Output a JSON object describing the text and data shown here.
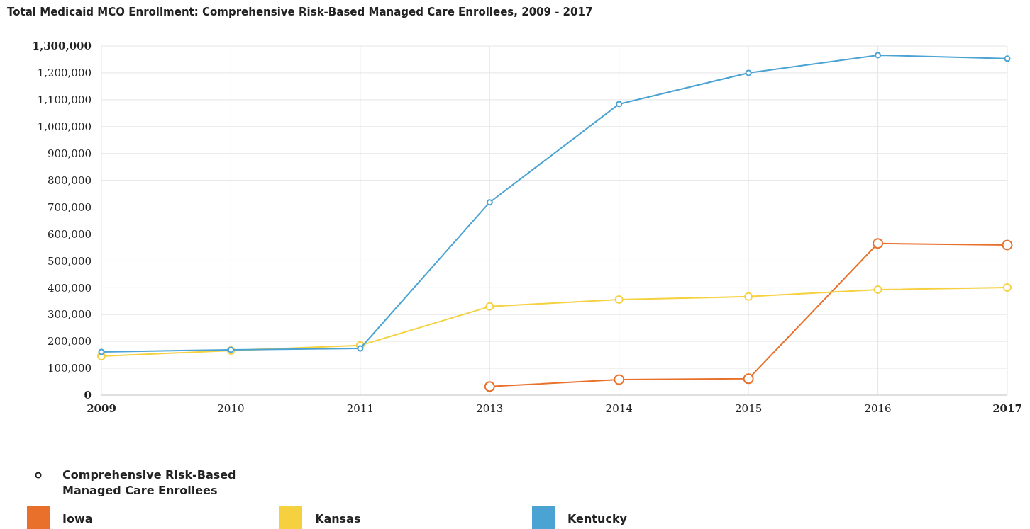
{
  "chart_data": {
    "type": "line",
    "title": "Total Medicaid MCO Enrollment: Comprehensive Risk-Based Managed Care Enrollees, 2009 - 2017",
    "categories": [
      "2009",
      "2010",
      "2011",
      "2013",
      "2014",
      "2015",
      "2016",
      "2017"
    ],
    "series": [
      {
        "name": "Iowa",
        "color": "#e8702a",
        "values": [
          null,
          null,
          null,
          32000,
          58000,
          61000,
          565000,
          559000
        ]
      },
      {
        "name": "Kansas",
        "color": "#f5d03f",
        "values": [
          145000,
          166000,
          185000,
          330000,
          356000,
          367000,
          393000,
          401000
        ]
      },
      {
        "name": "Kentucky",
        "color": "#4aa3d3",
        "values": [
          161000,
          169000,
          174000,
          718000,
          1084000,
          1200000,
          1266000,
          1253000
        ]
      }
    ],
    "legend_title": "Comprehensive Risk-Based Managed Care Enrollees",
    "ylim": [
      0,
      1300000
    ],
    "yticks": [
      {
        "value": 0,
        "label": "0"
      },
      {
        "value": 100000,
        "label": "100,000"
      },
      {
        "value": 200000,
        "label": "200,000"
      },
      {
        "value": 300000,
        "label": "300,000"
      },
      {
        "value": 400000,
        "label": "400,000"
      },
      {
        "value": 500000,
        "label": "500,000"
      },
      {
        "value": 600000,
        "label": "600,000"
      },
      {
        "value": 700000,
        "label": "700,000"
      },
      {
        "value": 800000,
        "label": "800,000"
      },
      {
        "value": 900000,
        "label": "900,000"
      },
      {
        "value": 1000000,
        "label": "1,000,000"
      },
      {
        "value": 1100000,
        "label": "1,100,000"
      },
      {
        "value": 1200000,
        "label": "1,200,000"
      },
      {
        "value": 1300000,
        "label": "1,300,000"
      }
    ],
    "grid": true,
    "legend": "bottom",
    "marker": "circle",
    "line_style": "solid"
  }
}
